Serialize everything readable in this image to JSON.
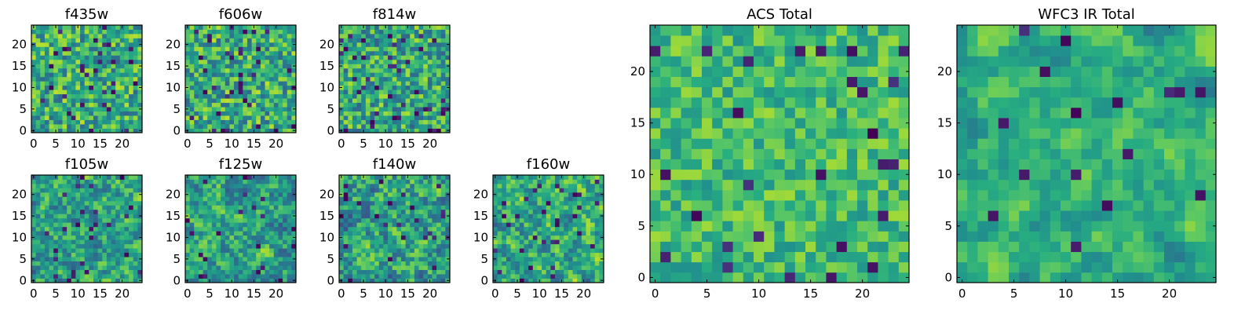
{
  "figure": {
    "description_free": true
  },
  "colormap": {
    "name": "viridis",
    "stops": [
      "#440154",
      "#472c7a",
      "#3b518b",
      "#2c718e",
      "#21908d",
      "#27ad81",
      "#5cc863",
      "#aadc32",
      "#fde725"
    ]
  },
  "chart_data": [
    {
      "id": "f435w",
      "type": "heatmap",
      "title": "f435w",
      "size": 25,
      "seed": 11,
      "smooth": 0,
      "bias": 0.62,
      "spread": 0.28,
      "dark": 0.05,
      "xticks": [
        0,
        5,
        10,
        15,
        20
      ],
      "yticks": [
        0,
        5,
        10,
        15,
        20
      ],
      "xlim": [
        0,
        24
      ],
      "ylim": [
        0,
        24
      ]
    },
    {
      "id": "f606w",
      "type": "heatmap",
      "title": "f606w",
      "size": 25,
      "seed": 23,
      "smooth": 0,
      "bias": 0.62,
      "spread": 0.28,
      "dark": 0.05,
      "xticks": [
        0,
        5,
        10,
        15,
        20
      ],
      "yticks": [
        0,
        5,
        10,
        15,
        20
      ],
      "xlim": [
        0,
        24
      ],
      "ylim": [
        0,
        24
      ]
    },
    {
      "id": "f814w",
      "type": "heatmap",
      "title": "f814w",
      "size": 25,
      "seed": 37,
      "smooth": 0,
      "bias": 0.6,
      "spread": 0.28,
      "dark": 0.05,
      "xticks": [
        0,
        5,
        10,
        15,
        20
      ],
      "yticks": [
        0,
        5,
        10,
        15,
        20
      ],
      "xlim": [
        0,
        24
      ],
      "ylim": [
        0,
        24
      ]
    },
    {
      "id": "f105w",
      "type": "heatmap",
      "title": "f105w",
      "size": 25,
      "seed": 41,
      "smooth": 1,
      "bias": 0.58,
      "spread": 0.3,
      "dark": 0.04,
      "xticks": [
        0,
        5,
        10,
        15,
        20
      ],
      "yticks": [
        0,
        5,
        10,
        15,
        20
      ],
      "xlim": [
        0,
        24
      ],
      "ylim": [
        0,
        24
      ]
    },
    {
      "id": "f125w",
      "type": "heatmap",
      "title": "f125w",
      "size": 25,
      "seed": 53,
      "smooth": 1,
      "bias": 0.58,
      "spread": 0.3,
      "dark": 0.04,
      "xticks": [
        0,
        5,
        10,
        15,
        20
      ],
      "yticks": [
        0,
        5,
        10,
        15,
        20
      ],
      "xlim": [
        0,
        24
      ],
      "ylim": [
        0,
        24
      ]
    },
    {
      "id": "f140w",
      "type": "heatmap",
      "title": "f140w",
      "size": 25,
      "seed": 67,
      "smooth": 1,
      "bias": 0.56,
      "spread": 0.3,
      "dark": 0.04,
      "xticks": [
        0,
        5,
        10,
        15,
        20
      ],
      "yticks": [
        0,
        5,
        10,
        15,
        20
      ],
      "xlim": [
        0,
        24
      ],
      "ylim": [
        0,
        24
      ]
    },
    {
      "id": "f160w",
      "type": "heatmap",
      "title": "f160w",
      "size": 25,
      "seed": 79,
      "smooth": 1,
      "bias": 0.6,
      "spread": 0.32,
      "dark": 0.04,
      "xticks": [
        0,
        5,
        10,
        15,
        20
      ],
      "yticks": [
        0,
        5,
        10,
        15,
        20
      ],
      "xlim": [
        0,
        24
      ],
      "ylim": [
        0,
        24
      ]
    },
    {
      "id": "acs_total",
      "type": "heatmap",
      "title": "ACS Total",
      "size": 25,
      "seed": 97,
      "smooth": 0,
      "bias": 0.68,
      "spread": 0.18,
      "dark": 0.03,
      "xticks": [
        0,
        5,
        10,
        15,
        20
      ],
      "yticks": [
        0,
        5,
        10,
        15,
        20
      ],
      "xlim": [
        0,
        24
      ],
      "ylim": [
        0,
        24
      ]
    },
    {
      "id": "wfc3_ir_total",
      "type": "heatmap",
      "title": "WFC3 IR Total",
      "size": 25,
      "seed": 113,
      "smooth": 2,
      "bias": 0.62,
      "spread": 0.22,
      "dark": 0.02,
      "xticks": [
        0,
        5,
        10,
        15,
        20
      ],
      "yticks": [
        0,
        5,
        10,
        15,
        20
      ],
      "xlim": [
        0,
        24
      ],
      "ylim": [
        0,
        24
      ]
    }
  ]
}
